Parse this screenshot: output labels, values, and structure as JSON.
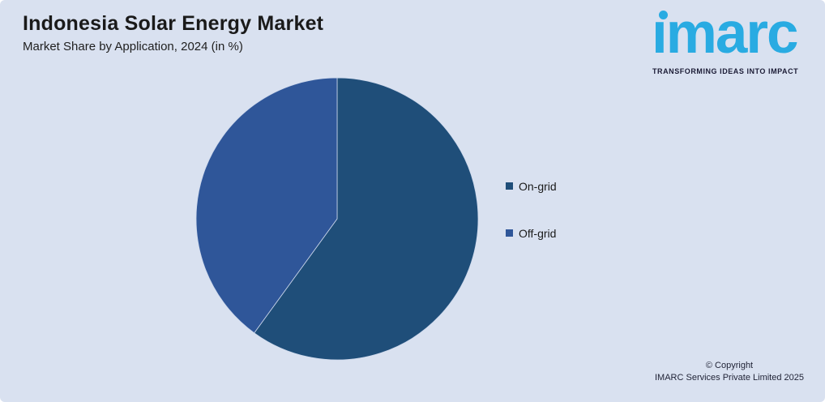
{
  "header": {
    "title": "Indonesia Solar Energy Market",
    "subtitle": "Market Share by Application, 2024 (in %)"
  },
  "logo": {
    "brand": "imarc",
    "tagline": "TRANSFORMING IDEAS INTO IMPACT",
    "brand_color": "#29ABE2",
    "tagline_color": "#1B1B35"
  },
  "chart_data": {
    "type": "pie",
    "title": "Indonesia Solar Energy Market",
    "subtitle": "Market Share by Application, 2024 (in %)",
    "units": "%",
    "start_angle_deg": 0,
    "direction": "clockwise",
    "legend_position": "right",
    "series": [
      {
        "name": "On-grid",
        "value": 60,
        "color": "#1F4E79"
      },
      {
        "name": "Off-grid",
        "value": 40,
        "color": "#2F5699"
      }
    ]
  },
  "footer": {
    "copyright_line1": "© Copyright",
    "copyright_line2": "IMARC Services Private Limited 2025"
  },
  "colors": {
    "background": "#D9E1F0",
    "slice_border": "#CDD8EC",
    "text": "#1A1A1A"
  }
}
